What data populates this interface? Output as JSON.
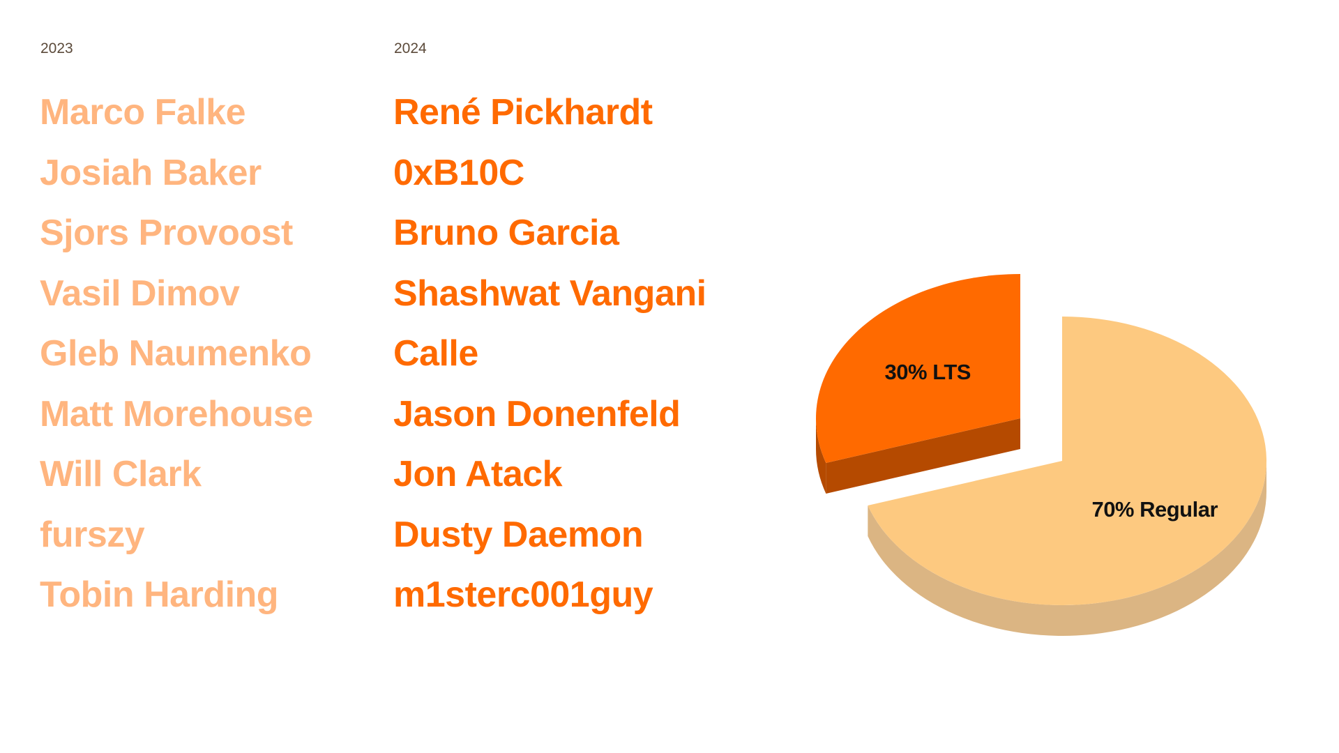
{
  "columns": [
    {
      "year": "2023",
      "names": [
        "Marco Falke",
        "Josiah Baker",
        "Sjors Provoost",
        "Vasil Dimov",
        "Gleb Naumenko",
        "Matt Morehouse",
        "Will Clark",
        "furszy",
        "Tobin Harding"
      ]
    },
    {
      "year": "2024",
      "names": [
        "René Pickhardt",
        "0xB10C",
        "Bruno Garcia",
        "Shashwat Vangani",
        "Calle",
        "Jason Donenfeld",
        "Jon Atack",
        "Dusty Daemon",
        "m1sterc001guy"
      ]
    }
  ],
  "colors": {
    "light_names": "#FFB57F",
    "dark_names": "#FF6A00"
  },
  "chart_data": {
    "type": "pie",
    "style": "3d-exploded",
    "slices": [
      {
        "label": "70% Regular",
        "value": 70,
        "color": "#FDC980",
        "side_color": "#DBB583"
      },
      {
        "label": "30% LTS",
        "value": 30,
        "color": "#FF6A00",
        "side_color": "#B54A00",
        "exploded": true
      }
    ]
  }
}
